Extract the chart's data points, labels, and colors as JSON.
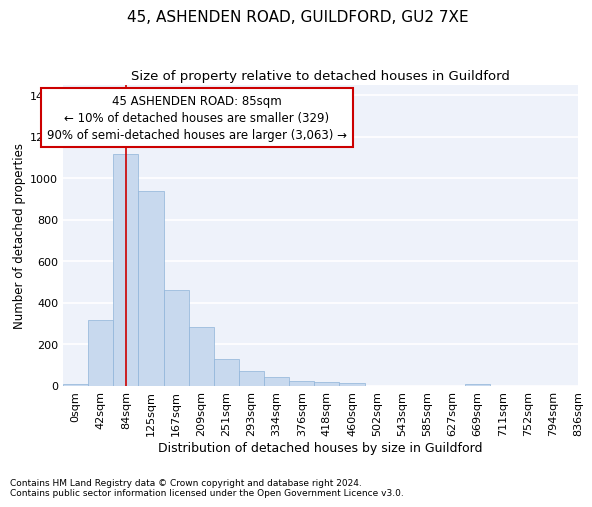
{
  "title1": "45, ASHENDEN ROAD, GUILDFORD, GU2 7XE",
  "title2": "Size of property relative to detached houses in Guildford",
  "xlabel": "Distribution of detached houses by size in Guildford",
  "ylabel": "Number of detached properties",
  "bar_values": [
    10,
    320,
    1120,
    940,
    460,
    285,
    130,
    70,
    45,
    25,
    20,
    15,
    0,
    0,
    0,
    0,
    10,
    0,
    0,
    0
  ],
  "bar_labels": [
    "0sqm",
    "42sqm",
    "84sqm",
    "125sqm",
    "167sqm",
    "209sqm",
    "251sqm",
    "293sqm",
    "334sqm",
    "376sqm",
    "418sqm",
    "460sqm",
    "502sqm",
    "543sqm",
    "585sqm",
    "627sqm",
    "669sqm",
    "711sqm",
    "752sqm",
    "794sqm",
    "836sqm"
  ],
  "bar_color": "#c8d9ee",
  "bar_edge_color": "#8fb4d9",
  "annotation_box_text": "45 ASHENDEN ROAD: 85sqm\n← 10% of detached houses are smaller (329)\n90% of semi-detached houses are larger (3,063) →",
  "annotation_box_color": "#cc0000",
  "annotation_box_bg": "#ffffff",
  "vline_x": 2.0,
  "vline_color": "#cc0000",
  "ylim": [
    0,
    1450
  ],
  "yticks": [
    0,
    200,
    400,
    600,
    800,
    1000,
    1200,
    1400
  ],
  "footnote1": "Contains HM Land Registry data © Crown copyright and database right 2024.",
  "footnote2": "Contains public sector information licensed under the Open Government Licence v3.0.",
  "bg_color": "#eef2fa",
  "grid_color": "#ffffff",
  "title1_fontsize": 11,
  "title2_fontsize": 9.5,
  "xlabel_fontsize": 9,
  "ylabel_fontsize": 8.5,
  "tick_fontsize": 8,
  "annot_fontsize": 8.5,
  "footnote_fontsize": 6.5
}
